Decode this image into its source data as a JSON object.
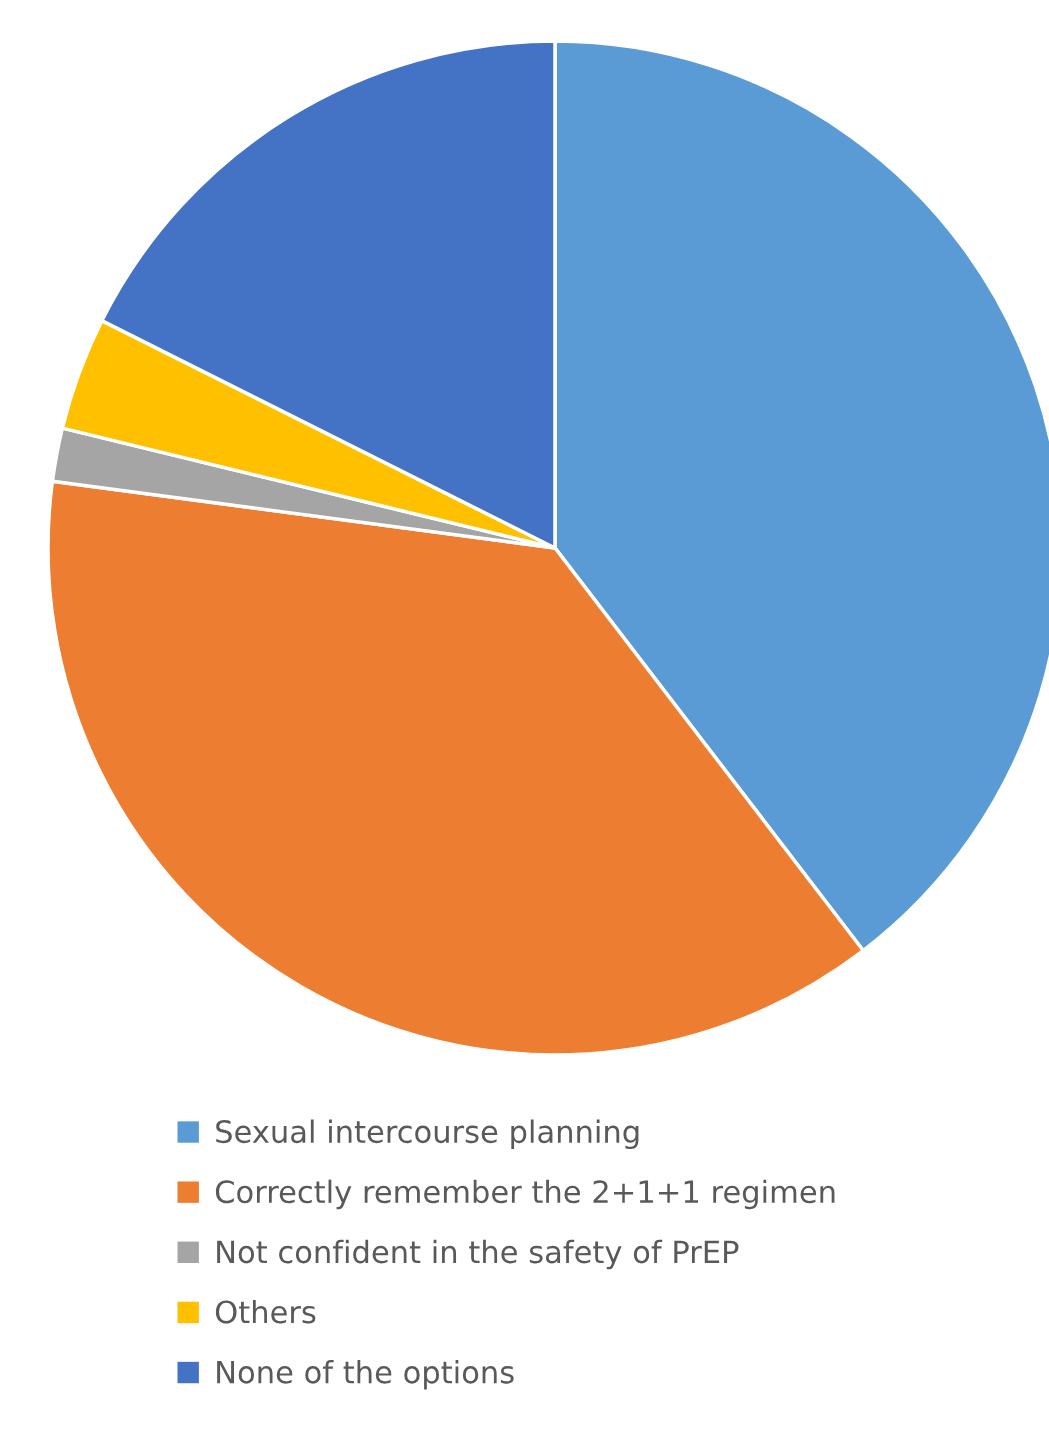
{
  "chart_data": {
    "type": "pie",
    "categories": [
      "Sexual intercourse planning",
      "Correctly remember the 2+1+1 regimen",
      "Not confident in the safety of PrEP",
      "Others",
      "None of the options"
    ],
    "values": [
      39.6,
      37.5,
      1.7,
      3.6,
      17.6
    ],
    "colors": [
      "#5b9bd5",
      "#ed7d31",
      "#a5a5a5",
      "#ffc000",
      "#4472c4"
    ],
    "legend": "bottom"
  }
}
